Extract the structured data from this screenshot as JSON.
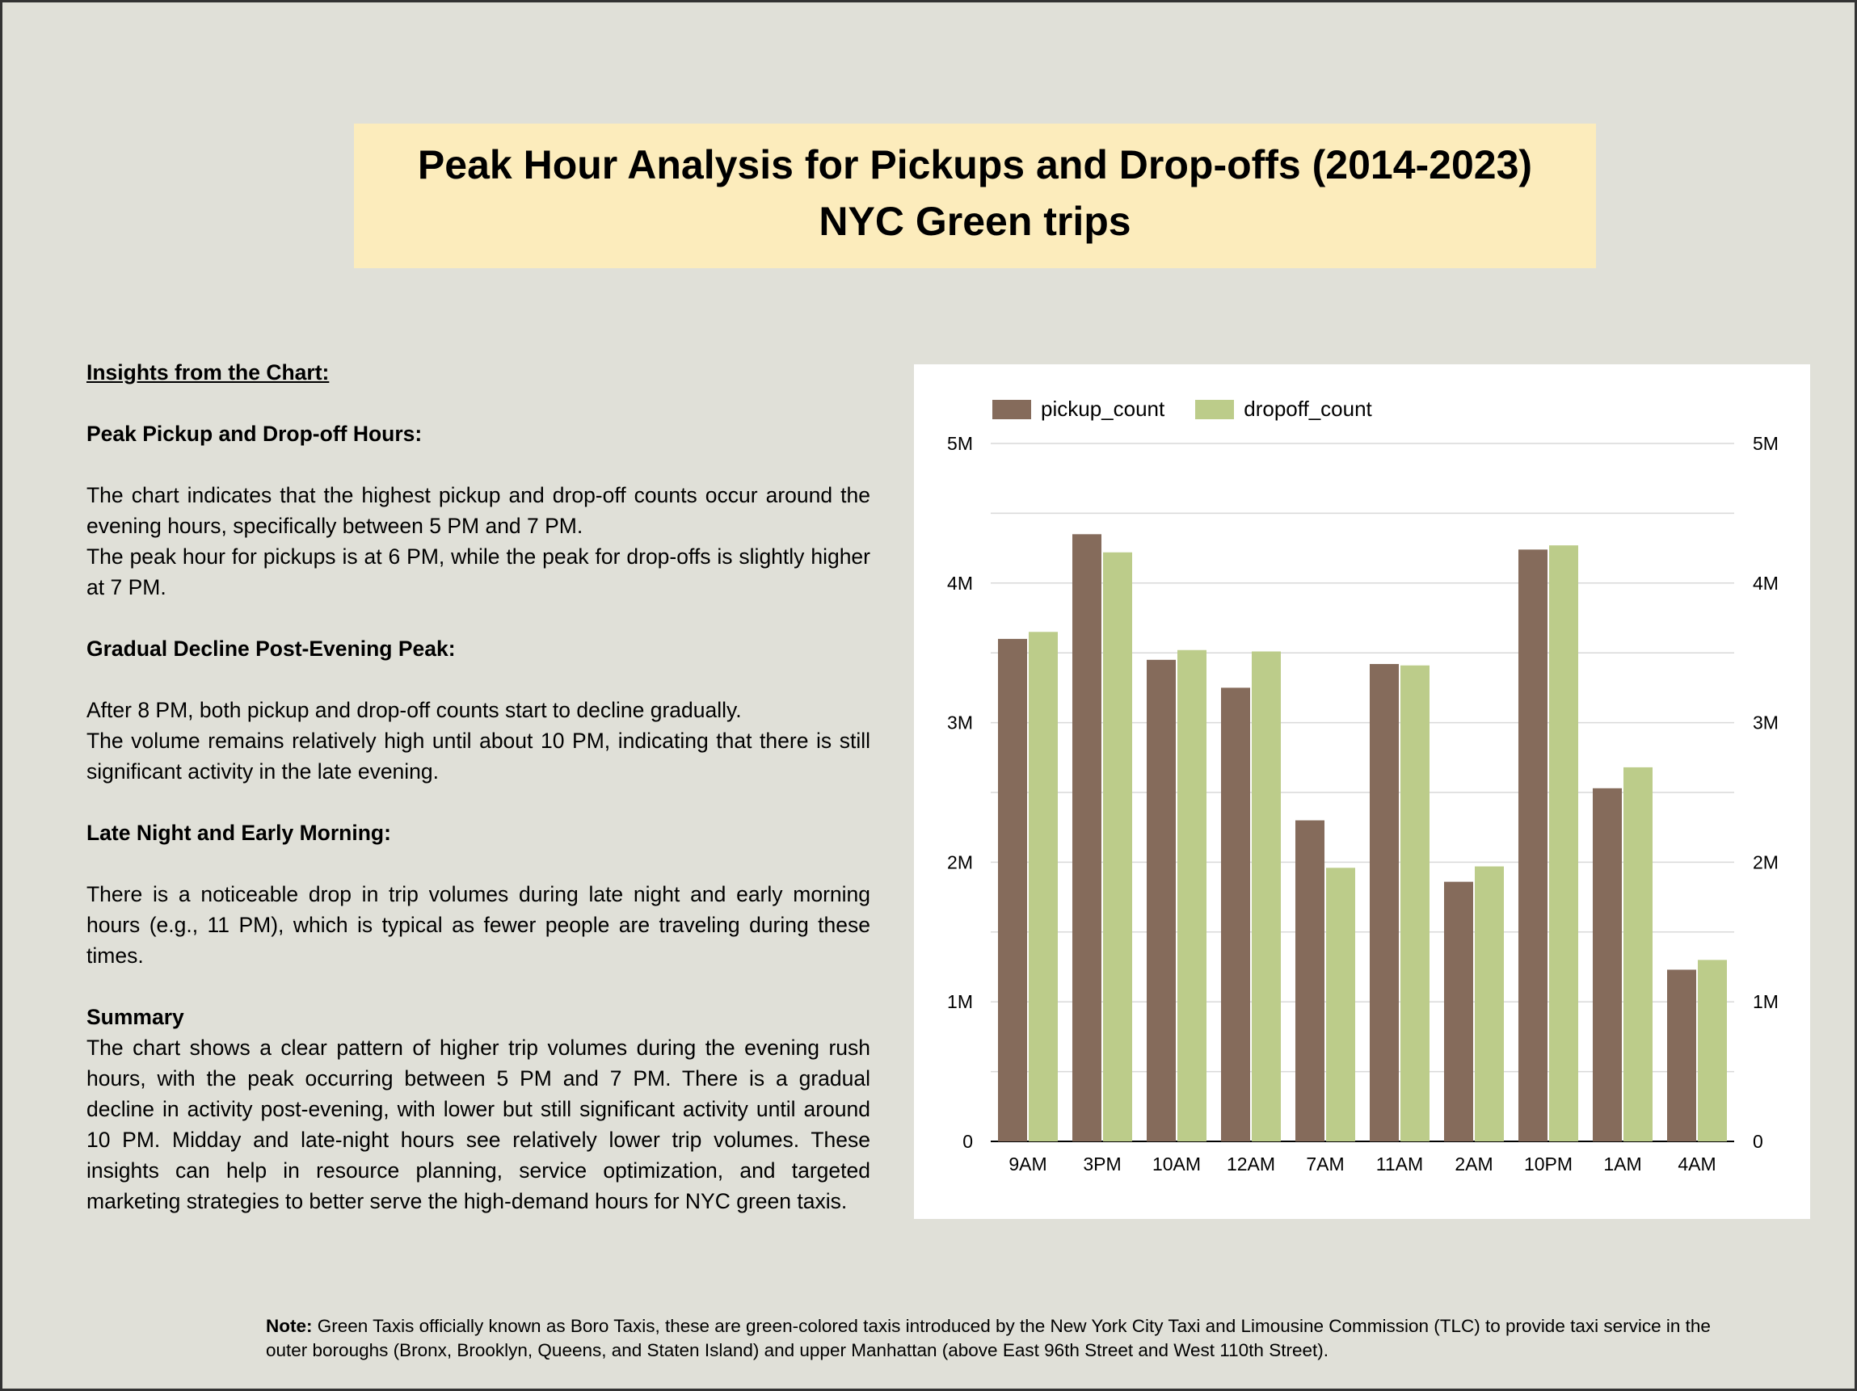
{
  "title": {
    "line1": "Peak Hour Analysis for Pickups and Drop-offs (2014-2023)",
    "line2": "NYC Green trips"
  },
  "insights": {
    "heading": "Insights from the Chart:",
    "section1_title": "Peak Pickup and Drop-off Hours:",
    "section1_p1": "The chart indicates that the highest pickup and drop-off counts occur around the evening hours, specifically between 5 PM and 7 PM.",
    "section1_p2": "The peak hour for pickups is at 6 PM, while the peak for drop-offs is slightly higher at 7 PM.",
    "section2_title": "Gradual Decline Post-Evening Peak:",
    "section2_p1": "After 8 PM, both pickup and drop-off counts start to decline gradually.",
    "section2_p2": "The volume remains relatively high until about 10 PM, indicating that there is still significant activity in the late evening.",
    "section3_title": "Late Night and Early Morning:",
    "section3_p1": "There is a noticeable drop in trip volumes during late night and early morning hours (e.g., 11 PM), which is typical as fewer people are traveling during these times.",
    "summary_title": "Summary",
    "summary_text": "The chart shows a clear pattern of higher trip volumes during the evening rush hours, with the peak occurring between 5 PM and 7 PM. There is a gradual decline in activity post-evening, with lower but still significant activity until around 10 PM. Midday and late-night hours see relatively lower trip volumes. These insights can help in resource planning, service optimization, and targeted marketing strategies to better serve the high-demand hours for NYC green taxis."
  },
  "note": {
    "label": "Note:",
    "text": "Green Taxis officially known as Boro Taxis, these are green-colored taxis introduced by the New York City Taxi and Limousine Commission (TLC) to provide taxi service in the outer boroughs (Bronx, Brooklyn, Queens, and Staten Island) and upper Manhattan (above East 96th Street and West 110th Street)."
  },
  "colors": {
    "pickup": "#856b5b",
    "dropoff": "#bccc8a",
    "title_bg": "#fcecbc",
    "slide_bg": "#e0e0d8"
  },
  "chart_data": {
    "type": "bar",
    "categories": [
      "9AM",
      "3PM",
      "10AM",
      "12AM",
      "7AM",
      "11AM",
      "2AM",
      "10PM",
      "1AM",
      "4AM"
    ],
    "series": [
      {
        "name": "pickup_count",
        "values": [
          3600000,
          4350000,
          3450000,
          3250000,
          2300000,
          3420000,
          1860000,
          4240000,
          2530000,
          1230000
        ]
      },
      {
        "name": "dropoff_count",
        "values": [
          3650000,
          4220000,
          3520000,
          3510000,
          1960000,
          3410000,
          1970000,
          4270000,
          2680000,
          1300000
        ]
      }
    ],
    "y_ticks": [
      "0",
      "1M",
      "2M",
      "3M",
      "4M",
      "5M"
    ],
    "ylim": [
      0,
      5000000
    ],
    "grid": true,
    "legend_position": "top-left",
    "secondary_axis": true
  }
}
